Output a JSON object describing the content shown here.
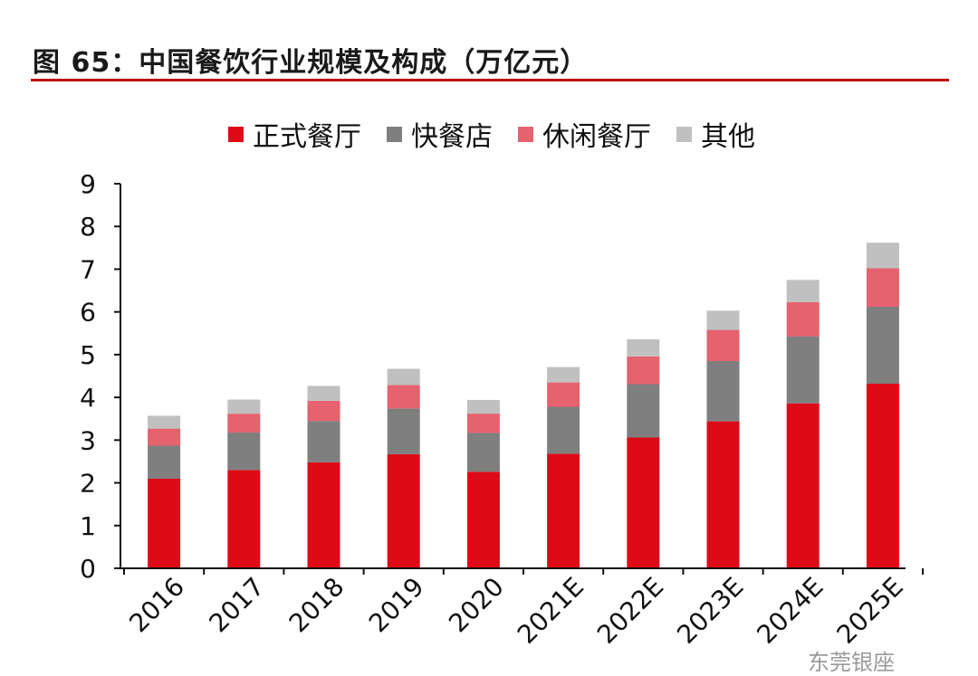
{
  "figure": {
    "title": "图 65：中国餐饮行业规模及构成（万亿元）",
    "rule_color": "#c0000e"
  },
  "watermark": "东莞银座",
  "chart_data": {
    "type": "bar",
    "stacked": true,
    "categories": [
      "2016",
      "2017",
      "2018",
      "2019",
      "2020",
      "2021E",
      "2022E",
      "2023E",
      "2024E",
      "2025E"
    ],
    "series": [
      {
        "name": "正式餐厅",
        "color": "#de0a17",
        "values": [
          2.1,
          2.3,
          2.48,
          2.67,
          2.26,
          2.68,
          3.06,
          3.44,
          3.86,
          4.32
        ]
      },
      {
        "name": "快餐店",
        "color": "#7f7f7f",
        "values": [
          0.77,
          0.88,
          0.97,
          1.07,
          0.91,
          1.1,
          1.25,
          1.41,
          1.57,
          1.8
        ]
      },
      {
        "name": "休闲餐厅",
        "color": "#e5626e",
        "values": [
          0.4,
          0.44,
          0.47,
          0.55,
          0.45,
          0.57,
          0.65,
          0.73,
          0.8,
          0.9
        ]
      },
      {
        "name": "其他",
        "color": "#c0c0c0",
        "values": [
          0.3,
          0.33,
          0.35,
          0.38,
          0.32,
          0.36,
          0.4,
          0.45,
          0.52,
          0.6
        ]
      }
    ],
    "ylim": [
      0,
      9
    ],
    "yticks": [
      "0",
      "1",
      "2",
      "3",
      "4",
      "5",
      "6",
      "7",
      "8",
      "9"
    ],
    "grid": false,
    "legend_position": "top",
    "xlabel": "",
    "ylabel": ""
  }
}
